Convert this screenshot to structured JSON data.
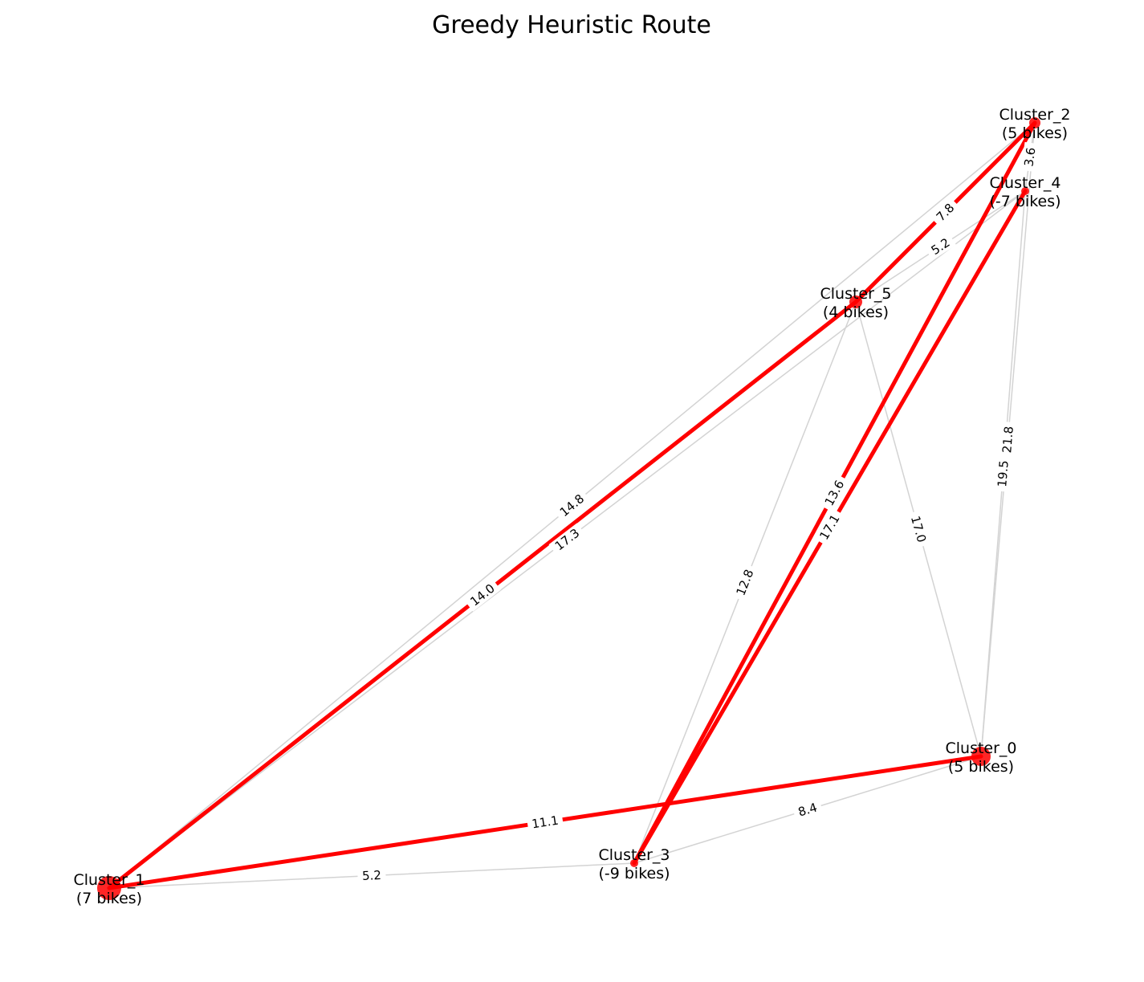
{
  "title": "Greedy Heuristic Route",
  "colors": {
    "route": "#ff0000",
    "edge": "#d3d3d3",
    "node": "#ff0000",
    "background": "#ffffff"
  },
  "nodes": [
    {
      "id": "Cluster_0",
      "line1": "Cluster_0",
      "line2": "(5 bikes)",
      "bikes": 5
    },
    {
      "id": "Cluster_1",
      "line1": "Cluster_1",
      "line2": "(7 bikes)",
      "bikes": 7
    },
    {
      "id": "Cluster_2",
      "line1": "Cluster_2",
      "line2": "(5 bikes)",
      "bikes": 5
    },
    {
      "id": "Cluster_3",
      "line1": "Cluster_3",
      "line2": "(-9 bikes)",
      "bikes": -9
    },
    {
      "id": "Cluster_4",
      "line1": "Cluster_4",
      "line2": "(-7 bikes)",
      "bikes": -7
    },
    {
      "id": "Cluster_5",
      "line1": "Cluster_5",
      "line2": "(4 bikes)",
      "bikes": 4
    }
  ],
  "edges": [
    {
      "from": "Cluster_1",
      "to": "Cluster_3",
      "label": "5.2",
      "route": false
    },
    {
      "from": "Cluster_3",
      "to": "Cluster_0",
      "label": "8.4",
      "route": false
    },
    {
      "from": "Cluster_1",
      "to": "Cluster_2",
      "label": "14.8",
      "route": false
    },
    {
      "from": "Cluster_1",
      "to": "Cluster_4",
      "label": "17.3",
      "route": false
    },
    {
      "from": "Cluster_3",
      "to": "Cluster_5",
      "label": "12.8",
      "route": false
    },
    {
      "from": "Cluster_5",
      "to": "Cluster_0",
      "label": "17.0",
      "route": false
    },
    {
      "from": "Cluster_2",
      "to": "Cluster_0",
      "label": "21.8",
      "route": false
    },
    {
      "from": "Cluster_4",
      "to": "Cluster_0",
      "label": "19.5",
      "route": false
    },
    {
      "from": "Cluster_5",
      "to": "Cluster_4",
      "label": "5.2",
      "route": false
    },
    {
      "from": "Cluster_2",
      "to": "Cluster_4",
      "label": "3.6",
      "route": false
    },
    {
      "from": "Cluster_1",
      "to": "Cluster_0",
      "label": "11.1",
      "route": true
    },
    {
      "from": "Cluster_1",
      "to": "Cluster_5",
      "label": "14.0",
      "route": true
    },
    {
      "from": "Cluster_5",
      "to": "Cluster_2",
      "label": "7.8",
      "route": true
    },
    {
      "from": "Cluster_2",
      "to": "Cluster_3",
      "label": "13.6",
      "route": true
    },
    {
      "from": "Cluster_3",
      "to": "Cluster_4",
      "label": "17.1",
      "route": true
    }
  ]
}
